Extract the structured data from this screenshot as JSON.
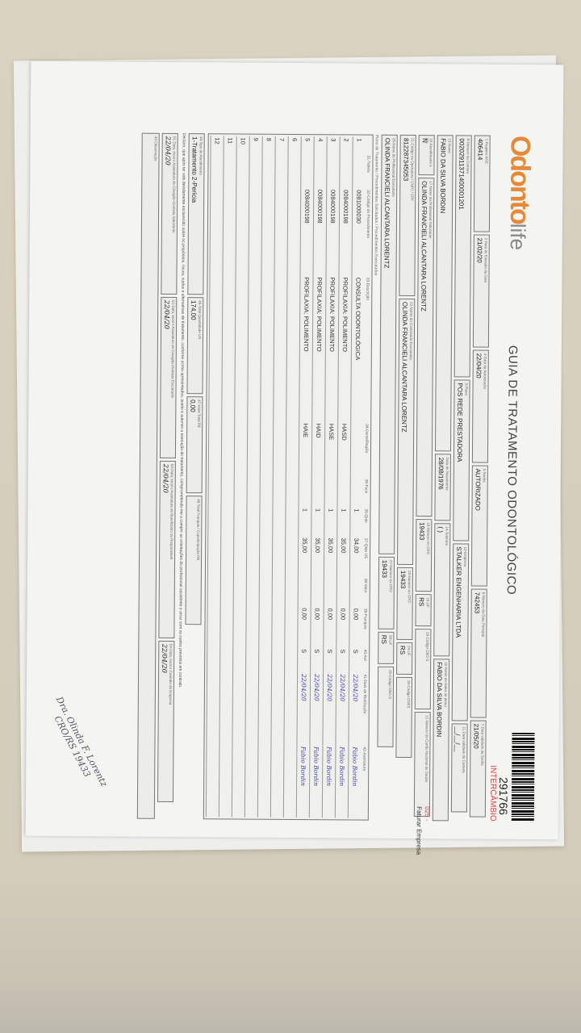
{
  "header": {
    "logo": "Odonto",
    "logo_suffix": "life",
    "title": "GUIA DE TRATAMENTO ODONTOLÓGICO",
    "guia_number": "291766",
    "intercambio": "INTERCÂMBIO",
    "faturar_code": "025 -",
    "faturar_label": "Faturar Empresa"
  },
  "fields": {
    "registro_ans": {
      "label": "1-Registro ANS",
      "value": "406414"
    },
    "data_emissao": {
      "label": "2-Data de Emissão da Guia",
      "value": "21/02/20"
    },
    "data_autorizacao": {
      "label": "4-Data da Autorização",
      "value": "22/04/20"
    },
    "senha": {
      "label": "5-Senha",
      "value": "AUTORIZADO"
    },
    "guia_principal": {
      "label": "6-Número da Guia Principal",
      "value": "742453"
    },
    "validade_senha": {
      "label": "7-Data validade da Senha",
      "value": "21/05/20"
    },
    "carteira": {
      "label": "8-Número da Carteira",
      "value": "00202911371400001201"
    },
    "plano": {
      "label": "9-Plano",
      "value": "POS REDE PRESTADORA"
    },
    "empresa": {
      "label": "10-Empresa",
      "value": "STALKER ENGENHARIA LTDA"
    },
    "validade_carteira": {
      "label": "11-Data validade da Carteira",
      "value": "__/__/__"
    },
    "nome": {
      "label": "13-Nome",
      "value": "FABIO DA SILVA BORDIN"
    },
    "nascimento": {
      "label": "Data de Nascimento",
      "value": "28/08/1976"
    },
    "telefone": {
      "label": "14-Telefone",
      "value": "(  )"
    },
    "titular": {
      "label": "15-Nome do titular do plano",
      "value": "FABIO DA SILVA BORDIN"
    },
    "cns": {
      "label": "12-Número do Cartão Nacional de Saúde",
      "value": ""
    },
    "rn": {
      "label": "16-Atendimento a RN",
      "value": "N"
    },
    "prof_solicitante": {
      "label": "17-Nome do Profissional Solicitante",
      "value": "OLINDA FRANCIELI ALCANTARA LORENTZ"
    },
    "cro_solicitante": {
      "label": "18-Número no CRO",
      "value": "19433"
    },
    "uf_solicitante": {
      "label": "19-UF",
      "value": "RS"
    },
    "cbo_solicitante": {
      "label": "20-Código CBO-S",
      "value": ""
    },
    "codigo_operadora": {
      "label": "21-Código na Operadora / CNPJ / CPF",
      "value": "812287345053"
    },
    "contratado": {
      "label": "22-Nome do Contratado Executante",
      "value": "OLINDA FRANCIELI ALCANTARA LORENTZ"
    },
    "cro_contratado": {
      "label": "23-Número no CRO",
      "value": "19433"
    },
    "uf_contratado": {
      "label": "24-UF",
      "value": "RS"
    },
    "cnes": {
      "label": "25-Código CNES",
      "value": ""
    },
    "prof_executante": {
      "label": "26-Nome do Profissional Executante",
      "value": "OLINDA FRANCIELI ALCANTARA LORENTZ"
    },
    "cro_executante": {
      "label": "27-Número no CRO",
      "value": "19433"
    },
    "uf_executante": {
      "label": "28-UF",
      "value": "RS"
    },
    "cbo_executante": {
      "label": "29-Código CBO-S",
      "value": ""
    }
  },
  "procedures": {
    "section_label": "Plano de Tratamento / Procedimentos Solicitados / Procedimentos Executados",
    "columns": [
      "31-Tabela",
      "32-Código do Procedimento",
      "33-Descrição",
      "34-Dente/Região",
      "35-Face",
      "36-Qtde",
      "37-Qtde US",
      "38-Valor",
      "39-Franquia",
      "40-Aut",
      "41-Data de Realização",
      "42-Assinatura"
    ],
    "rows": [
      {
        "n": "1",
        "tabela": "",
        "codigo": "0081000030",
        "descricao": "CONSULTA ODONTOLÓGICA",
        "regiao": "",
        "face": "",
        "qtde": "1",
        "us": "34,00",
        "valor": "",
        "franquia": "0,00",
        "aut": "S",
        "data": "22/04/20",
        "assinatura": "Fabio Bordin"
      },
      {
        "n": "2",
        "tabela": "",
        "codigo": "0084000198",
        "descricao": "PROFILAXIA: POLIMENTO",
        "regiao": "HASD",
        "face": "",
        "qtde": "1",
        "us": "35,00",
        "valor": "",
        "franquia": "0,00",
        "aut": "S",
        "data": "22/04/20",
        "assinatura": "Fabio Bordin"
      },
      {
        "n": "3",
        "tabela": "",
        "codigo": "0084000198",
        "descricao": "PROFILAXIA: POLIMENTO",
        "regiao": "HASE",
        "face": "",
        "qtde": "1",
        "us": "35,00",
        "valor": "",
        "franquia": "0,00",
        "aut": "S",
        "data": "22/04/20",
        "assinatura": "Fabio Bordin"
      },
      {
        "n": "4",
        "tabela": "",
        "codigo": "0084000198",
        "descricao": "PROFILAXIA: POLIMENTO",
        "regiao": "HAID",
        "face": "",
        "qtde": "1",
        "us": "35,00",
        "valor": "",
        "franquia": "0,00",
        "aut": "S",
        "data": "22/04/20",
        "assinatura": "Fabio Bordin"
      },
      {
        "n": "5",
        "tabela": "",
        "codigo": "0084000198",
        "descricao": "PROFILAXIA: POLIMENTO",
        "regiao": "HAIE",
        "face": "",
        "qtde": "1",
        "us": "35,00",
        "valor": "",
        "franquia": "0,00",
        "aut": "S",
        "data": "22/04/20",
        "assinatura": "Fabio Bordin"
      },
      {
        "n": "6"
      },
      {
        "n": "7"
      },
      {
        "n": "8"
      },
      {
        "n": "9"
      },
      {
        "n": "10"
      },
      {
        "n": "11"
      },
      {
        "n": "12"
      }
    ]
  },
  "totals": {
    "tipo_atendimento_label": "44-Tipo de Atendimento",
    "tipo_atendimento": "1-Tratamento  2-Perícia",
    "total_us_label": "46-Total Quantidade US",
    "total_us": "174,00",
    "total_franquia_label": "47-Valor Total R$",
    "total_franquia": "0,00",
    "total_valor_label": "48-Total Franquia / Coparticipação R$",
    "total_valor": ""
  },
  "declaration": "Declaro, que após ter sido devidamente esclarecido sobre os propósitos, riscos, custos e alternativas de tratamento, conforme acima apresentados, aceito e autorizo a execução do tratamento, comprometendo-me a cumprir as orientações do profissional assistente e arcar com os custos previstos em contrato.",
  "signatures": {
    "cirurgiao_label": "51-Data, local e Assinatura do Cirurgião-Dentista Solicitante",
    "cirurgiao_date": "22/04/20",
    "executante_label": "52-Data, local e Assinatura do Cirurgião-Dentista Executante",
    "executante_date": "22/04/20",
    "beneficiario_label": "53-Data, local e Assinatura do Beneficiário ou Responsável",
    "beneficiario_date": "22/04/20",
    "empresa_label": "54-Data, local e Carimbo da Empresa",
    "empresa_date": "22/04/20",
    "observacao_label": "43-Observação"
  },
  "stamp": {
    "line1": "Dra. Olinda F. Lorentz",
    "line2": "CRO/RS 19433"
  }
}
